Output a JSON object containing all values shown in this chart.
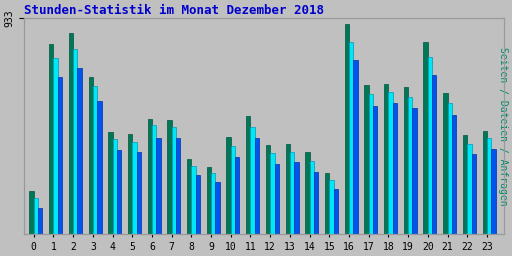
{
  "title": "Stunden-Statistik im Monat Dezember 2018",
  "ylabel": "Seiten / Dateien / Anfragen",
  "ymax": 933,
  "background_color": "#c0c0c0",
  "title_color": "#0000cc",
  "ylabel_color": "#008868",
  "bar_width": 0.22,
  "colors": [
    "#007858",
    "#00e8f8",
    "#0055ee"
  ],
  "edge_colors": [
    "#005540",
    "#0099bb",
    "#0033aa"
  ],
  "seiten": [
    185,
    820,
    870,
    680,
    440,
    435,
    500,
    495,
    325,
    290,
    420,
    510,
    385,
    390,
    355,
    265,
    910,
    645,
    650,
    635,
    830,
    610,
    430,
    445
  ],
  "dateien": [
    155,
    760,
    800,
    640,
    410,
    400,
    470,
    465,
    295,
    265,
    380,
    465,
    350,
    355,
    315,
    235,
    830,
    605,
    615,
    595,
    765,
    565,
    390,
    415
  ],
  "anfragen": [
    115,
    680,
    720,
    575,
    365,
    355,
    415,
    415,
    255,
    225,
    335,
    415,
    305,
    310,
    270,
    195,
    755,
    555,
    565,
    545,
    690,
    515,
    345,
    370
  ]
}
